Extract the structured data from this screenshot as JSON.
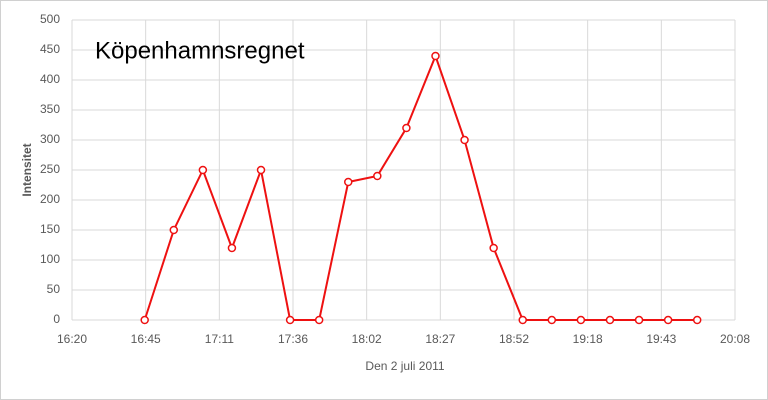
{
  "chart_data": {
    "type": "line",
    "title": "Köpenhamnsregnet",
    "x_label": "Den 2 juli 2011",
    "y_label": "Intensitet",
    "x": [
      1005,
      1015,
      1025,
      1035,
      1045,
      1055,
      1065,
      1075,
      1085,
      1095,
      1105,
      1115,
      1125,
      1135,
      1145,
      1155,
      1165,
      1175,
      1185,
      1195
    ],
    "values": [
      0,
      150,
      250,
      120,
      250,
      0,
      0,
      230,
      240,
      320,
      440,
      300,
      120,
      0,
      0,
      0,
      0,
      0,
      0,
      0
    ],
    "color": "#ee1111",
    "xlim": [
      980,
      1208
    ],
    "xticks": [
      {
        "value": 980,
        "label": "16:20"
      },
      {
        "value": 1005.33,
        "label": "16:45"
      },
      {
        "value": 1030.67,
        "label": "17:11"
      },
      {
        "value": 1056,
        "label": "17:36"
      },
      {
        "value": 1081.33,
        "label": "18:02"
      },
      {
        "value": 1106.67,
        "label": "18:27"
      },
      {
        "value": 1132,
        "label": "18:52"
      },
      {
        "value": 1157.33,
        "label": "19:18"
      },
      {
        "value": 1182.67,
        "label": "19:43"
      },
      {
        "value": 1208,
        "label": "20:08"
      }
    ],
    "ylim": [
      0,
      500
    ],
    "yticks": [
      0,
      50,
      100,
      150,
      200,
      250,
      300,
      350,
      400,
      450,
      500
    ],
    "grid": true
  }
}
